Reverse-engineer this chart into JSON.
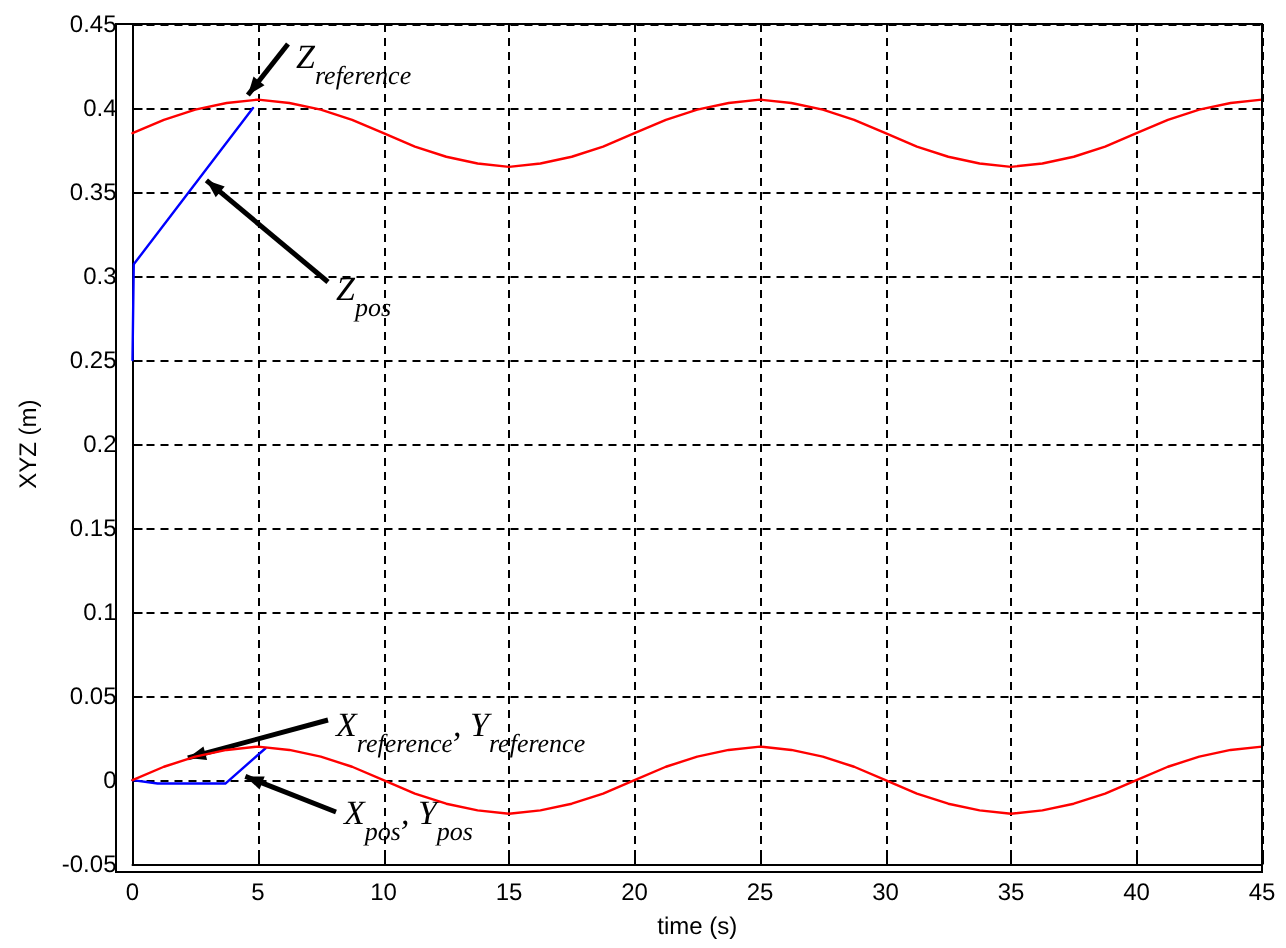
{
  "chart_data": {
    "type": "line",
    "xlabel": "time (s)",
    "ylabel": "XYZ (m)",
    "xlim": [
      0,
      45
    ],
    "xticks": [
      0,
      5,
      10,
      15,
      20,
      25,
      30,
      35,
      40,
      45
    ],
    "ylim": [
      -0.05,
      0.45
    ],
    "yticks": [
      -0.05,
      0,
      0.05,
      0.1,
      0.15,
      0.2,
      0.25,
      0.3,
      0.35,
      0.4,
      0.45
    ],
    "grid": true,
    "marker": "none",
    "x": [
      0,
      1.25,
      2.5,
      3.75,
      5,
      6.25,
      7.5,
      8.75,
      10,
      11.25,
      12.5,
      13.75,
      15,
      16.25,
      17.5,
      18.75,
      20,
      21.25,
      22.5,
      23.75,
      25,
      26.25,
      27.5,
      28.75,
      30,
      31.25,
      32.5,
      33.75,
      35,
      36.25,
      37.5,
      38.75,
      40,
      41.25,
      42.5,
      43.75,
      45
    ],
    "series": [
      {
        "color": "#0000ff",
        "line_style": "solid",
        "x": [
          0,
          0.05,
          4.8
        ],
        "values": [
          0.25,
          0.307,
          0.4
        ]
      },
      {
        "color": "#0000ff",
        "line_style": "solid",
        "x": [
          0,
          1,
          3.7,
          5.3
        ],
        "values": [
          0,
          -0.002,
          -0.002,
          0.019
        ]
      },
      {
        "color": "#ff0000",
        "line_style": "solid",
        "values": [
          0.385,
          0.393,
          0.399,
          0.403,
          0.405,
          0.403,
          0.399,
          0.393,
          0.385,
          0.377,
          0.371,
          0.367,
          0.365,
          0.367,
          0.371,
          0.377,
          0.385,
          0.393,
          0.399,
          0.403,
          0.405,
          0.403,
          0.399,
          0.393,
          0.385,
          0.377,
          0.371,
          0.367,
          0.365,
          0.367,
          0.371,
          0.377,
          0.385,
          0.393,
          0.399,
          0.403,
          0.405
        ]
      },
      {
        "color": "#ff0000",
        "line_style": "solid",
        "values": [
          0,
          0.008,
          0.014,
          0.018,
          0.02,
          0.018,
          0.014,
          0.008,
          0,
          -0.008,
          -0.014,
          -0.018,
          -0.02,
          -0.018,
          -0.014,
          -0.008,
          0,
          0.008,
          0.014,
          0.018,
          0.02,
          0.018,
          0.014,
          0.008,
          0,
          -0.008,
          -0.014,
          -0.018,
          -0.02,
          -0.018,
          -0.014,
          -0.008,
          0,
          0.008,
          0.014,
          0.018,
          0.02
        ]
      }
    ],
    "annotations": [
      {
        "text": "Z$_{reference}$",
        "x": 4.4,
        "y": 0.404
      },
      {
        "text": "Z$_{pos}$",
        "x": 2.7,
        "y": 0.36
      },
      {
        "text": "X$_{reference}$, Y$_{reference}$",
        "x": 1.9,
        "y": 0.012
      },
      {
        "text": "X$_{pos}$, Y$_{pos}$",
        "x": 4.2,
        "y": 0.004
      }
    ]
  }
}
